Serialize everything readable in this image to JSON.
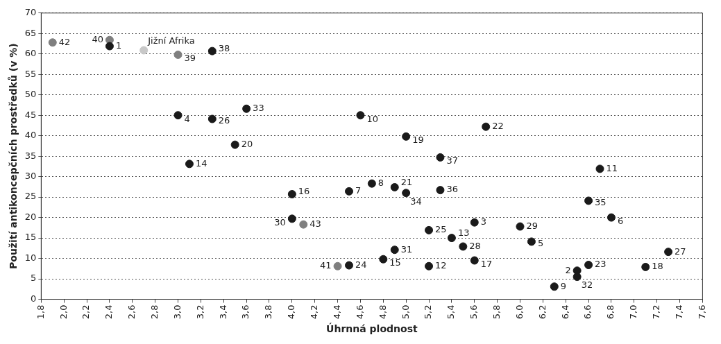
{
  "chart_data": {
    "type": "scatter",
    "xlabel": "Úhrnná plodnost",
    "ylabel": "Použití antikoncepčních prostředků (v %)",
    "xlim": [
      1.8,
      7.6
    ],
    "xticks": [
      {
        "value": 1.8,
        "label": "1,8"
      },
      {
        "value": 2.0,
        "label": "2,0"
      },
      {
        "value": 2.2,
        "label": "2,2"
      },
      {
        "value": 2.4,
        "label": "2,4"
      },
      {
        "value": 2.6,
        "label": "2,6"
      },
      {
        "value": 2.8,
        "label": "2,8"
      },
      {
        "value": 3.0,
        "label": "3,0"
      },
      {
        "value": 3.2,
        "label": "3,2"
      },
      {
        "value": 3.4,
        "label": "3,4"
      },
      {
        "value": 3.6,
        "label": "3,6"
      },
      {
        "value": 3.8,
        "label": "3,8"
      },
      {
        "value": 4.0,
        "label": "4,0"
      },
      {
        "value": 4.2,
        "label": "4,2"
      },
      {
        "value": 4.4,
        "label": "4,4"
      },
      {
        "value": 4.6,
        "label": "4,6"
      },
      {
        "value": 4.8,
        "label": "4,8"
      },
      {
        "value": 5.0,
        "label": "5,0"
      },
      {
        "value": 5.2,
        "label": "5,2"
      },
      {
        "value": 5.4,
        "label": "5,4"
      },
      {
        "value": 5.6,
        "label": "5,6"
      },
      {
        "value": 5.8,
        "label": "5,8"
      },
      {
        "value": 6.0,
        "label": "6,0"
      },
      {
        "value": 6.2,
        "label": "6,2"
      },
      {
        "value": 6.4,
        "label": "6,4"
      },
      {
        "value": 6.6,
        "label": "6,6"
      },
      {
        "value": 6.8,
        "label": "6,8"
      },
      {
        "value": 7.0,
        "label": "7,0"
      },
      {
        "value": 7.2,
        "label": "7,2"
      },
      {
        "value": 7.4,
        "label": "7,4"
      },
      {
        "value": 7.6,
        "label": "7,6"
      }
    ],
    "ylim": [
      0,
      70
    ],
    "yticks": [
      0,
      5,
      10,
      15,
      20,
      25,
      30,
      35,
      40,
      45,
      50,
      55,
      60,
      65,
      70
    ],
    "grid": "y",
    "legend": false,
    "marker": "circle",
    "series": [
      {
        "color": "#1a1a1a",
        "x": [
          2.4,
          6.5,
          5.6,
          3.0,
          6.1,
          6.8,
          4.5,
          4.7,
          6.3,
          4.6,
          6.7,
          5.2,
          5.4,
          3.1,
          4.8,
          4.0,
          5.6,
          7.1,
          5.0,
          3.5,
          4.9,
          5.7,
          6.6,
          4.5,
          5.2,
          3.3,
          7.3,
          5.5,
          6.0,
          4.0,
          4.9,
          6.5,
          3.6,
          5.0,
          6.6,
          5.3,
          5.3,
          3.3
        ],
        "values": [
          61.9,
          7.0,
          18.8,
          45.0,
          14.1,
          20.0,
          26.4,
          28.3,
          3.1,
          45.0,
          31.9,
          8.1,
          15.0,
          33.1,
          9.8,
          25.7,
          9.5,
          7.9,
          39.8,
          37.8,
          27.4,
          42.2,
          8.4,
          8.3,
          16.9,
          44.1,
          11.6,
          12.9,
          17.8,
          19.7,
          12.1,
          5.5,
          46.6,
          26.0,
          24.1,
          26.7,
          34.7,
          60.7
        ]
      },
      {
        "color": "#7f7f7f",
        "x": [
          3.0,
          2.4,
          4.4,
          1.9,
          4.1
        ],
        "values": [
          59.8,
          63.4,
          8.1,
          62.8,
          18.3
        ]
      },
      {
        "color": "#c8c8c8",
        "x": [
          2.7
        ],
        "values": [
          60.9
        ]
      }
    ],
    "annotations": [
      {
        "text": "1",
        "x": 2.4,
        "y": 61.9
      },
      {
        "text": "2",
        "x": 6.5,
        "y": 7.0
      },
      {
        "text": "3",
        "x": 5.6,
        "y": 18.8
      },
      {
        "text": "4",
        "x": 3.0,
        "y": 45.0
      },
      {
        "text": "5",
        "x": 6.1,
        "y": 14.1
      },
      {
        "text": "6",
        "x": 6.8,
        "y": 20.0
      },
      {
        "text": "7",
        "x": 4.5,
        "y": 26.4
      },
      {
        "text": "8",
        "x": 4.7,
        "y": 28.3
      },
      {
        "text": "9",
        "x": 6.3,
        "y": 3.1
      },
      {
        "text": "10",
        "x": 4.6,
        "y": 45.0
      },
      {
        "text": "11",
        "x": 6.7,
        "y": 31.9
      },
      {
        "text": "12",
        "x": 5.2,
        "y": 8.1
      },
      {
        "text": "13",
        "x": 5.4,
        "y": 15.0
      },
      {
        "text": "14",
        "x": 3.1,
        "y": 33.1
      },
      {
        "text": "15",
        "x": 4.8,
        "y": 9.8
      },
      {
        "text": "16",
        "x": 4.0,
        "y": 25.7
      },
      {
        "text": "17",
        "x": 5.6,
        "y": 9.5
      },
      {
        "text": "18",
        "x": 7.1,
        "y": 7.9
      },
      {
        "text": "19",
        "x": 5.0,
        "y": 39.8
      },
      {
        "text": "20",
        "x": 3.5,
        "y": 37.8
      },
      {
        "text": "21",
        "x": 4.9,
        "y": 27.4
      },
      {
        "text": "22",
        "x": 5.7,
        "y": 42.2
      },
      {
        "text": "23",
        "x": 6.6,
        "y": 8.4
      },
      {
        "text": "24",
        "x": 4.5,
        "y": 8.3
      },
      {
        "text": "25",
        "x": 5.2,
        "y": 16.9
      },
      {
        "text": "26",
        "x": 3.3,
        "y": 44.1
      },
      {
        "text": "27",
        "x": 7.3,
        "y": 11.6
      },
      {
        "text": "28",
        "x": 5.5,
        "y": 12.9
      },
      {
        "text": "29",
        "x": 6.0,
        "y": 17.8
      },
      {
        "text": "30",
        "x": 4.0,
        "y": 19.7
      },
      {
        "text": "31",
        "x": 4.9,
        "y": 12.1
      },
      {
        "text": "32",
        "x": 6.5,
        "y": 5.5
      },
      {
        "text": "33",
        "x": 3.6,
        "y": 46.6
      },
      {
        "text": "34",
        "x": 5.0,
        "y": 26.0
      },
      {
        "text": "35",
        "x": 6.6,
        "y": 24.1
      },
      {
        "text": "36",
        "x": 5.3,
        "y": 26.7
      },
      {
        "text": "37",
        "x": 5.3,
        "y": 34.7
      },
      {
        "text": "38",
        "x": 3.3,
        "y": 60.7
      },
      {
        "text": "39",
        "x": 3.0,
        "y": 59.8
      },
      {
        "text": "40",
        "x": 2.4,
        "y": 63.4
      },
      {
        "text": "41",
        "x": 4.4,
        "y": 8.1
      },
      {
        "text": "42",
        "x": 1.9,
        "y": 62.8
      },
      {
        "text": "43",
        "x": 4.1,
        "y": 18.3
      },
      {
        "text": "Jižní Afrika",
        "x": 2.7,
        "y": 60.9
      }
    ]
  }
}
